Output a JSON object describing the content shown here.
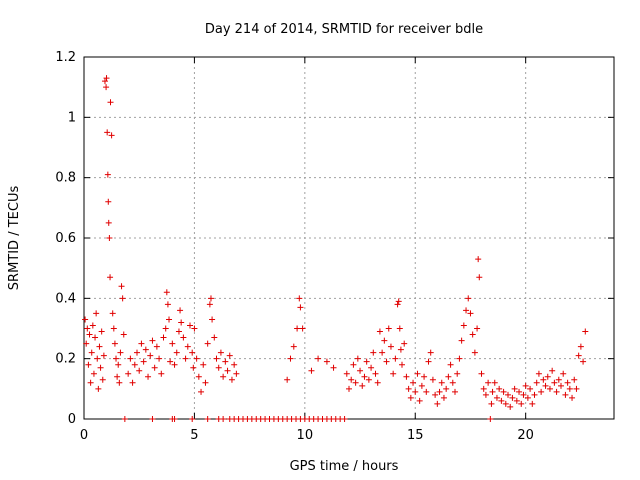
{
  "chart_data": {
    "type": "scatter",
    "title": "Day 214 of 2014, SRMTID for receiver bdle",
    "xlabel": "GPS time / hours",
    "ylabel": "SRMTID / TECUs",
    "xlim": [
      0,
      24
    ],
    "ylim": [
      0,
      1.2
    ],
    "xticks": [
      0,
      5,
      10,
      15,
      20
    ],
    "yticks": [
      0,
      0.2,
      0.4,
      0.6,
      0.8,
      1,
      1.2
    ],
    "xtick_labels": [
      "0",
      "5",
      "10",
      "15",
      "20"
    ],
    "ytick_labels": [
      "0",
      "0.2",
      "0.4",
      "0.6",
      "0.8",
      "1",
      "1.2"
    ],
    "grid": true,
    "marker": "+",
    "color": "#e00000",
    "series": [
      {
        "name": "SRMTID",
        "points": [
          [
            0.05,
            0.33
          ],
          [
            0.1,
            0.25
          ],
          [
            0.15,
            0.3
          ],
          [
            0.2,
            0.18
          ],
          [
            0.25,
            0.28
          ],
          [
            0.3,
            0.12
          ],
          [
            0.35,
            0.22
          ],
          [
            0.4,
            0.31
          ],
          [
            0.45,
            0.15
          ],
          [
            0.5,
            0.27
          ],
          [
            0.55,
            0.35
          ],
          [
            0.6,
            0.2
          ],
          [
            0.65,
            0.1
          ],
          [
            0.7,
            0.24
          ],
          [
            0.75,
            0.17
          ],
          [
            0.8,
            0.29
          ],
          [
            0.85,
            0.13
          ],
          [
            0.9,
            0.21
          ],
          [
            0.95,
            1.12
          ],
          [
            1.0,
            1.1
          ],
          [
            1.02,
            1.13
          ],
          [
            1.05,
            0.95
          ],
          [
            1.08,
            0.81
          ],
          [
            1.1,
            0.72
          ],
          [
            1.12,
            0.65
          ],
          [
            1.15,
            0.6
          ],
          [
            1.18,
            0.47
          ],
          [
            1.2,
            1.05
          ],
          [
            1.25,
            0.94
          ],
          [
            1.3,
            0.35
          ],
          [
            1.35,
            0.3
          ],
          [
            1.4,
            0.25
          ],
          [
            1.45,
            0.2
          ],
          [
            1.5,
            0.14
          ],
          [
            1.55,
            0.18
          ],
          [
            1.6,
            0.12
          ],
          [
            1.65,
            0.22
          ],
          [
            1.7,
            0.44
          ],
          [
            1.75,
            0.4
          ],
          [
            1.8,
            0.28
          ],
          [
            1.85,
            0.0
          ],
          [
            2.0,
            0.15
          ],
          [
            2.1,
            0.2
          ],
          [
            2.2,
            0.12
          ],
          [
            2.3,
            0.18
          ],
          [
            2.4,
            0.22
          ],
          [
            2.5,
            0.16
          ],
          [
            2.6,
            0.25
          ],
          [
            2.7,
            0.19
          ],
          [
            2.8,
            0.23
          ],
          [
            2.9,
            0.14
          ],
          [
            3.0,
            0.21
          ],
          [
            3.1,
            0.26
          ],
          [
            3.2,
            0.17
          ],
          [
            3.3,
            0.24
          ],
          [
            3.4,
            0.2
          ],
          [
            3.5,
            0.15
          ],
          [
            3.6,
            0.27
          ],
          [
            3.7,
            0.3
          ],
          [
            3.75,
            0.42
          ],
          [
            3.8,
            0.38
          ],
          [
            3.85,
            0.33
          ],
          [
            3.9,
            0.19
          ],
          [
            4.0,
            0.25
          ],
          [
            4.1,
            0.18
          ],
          [
            4.2,
            0.22
          ],
          [
            4.3,
            0.29
          ],
          [
            4.35,
            0.36
          ],
          [
            4.4,
            0.32
          ],
          [
            4.5,
            0.27
          ],
          [
            4.6,
            0.2
          ],
          [
            4.7,
            0.24
          ],
          [
            4.8,
            0.31
          ],
          [
            4.9,
            0.22
          ],
          [
            4.95,
            0.17
          ],
          [
            5.0,
            0.3
          ],
          [
            5.1,
            0.2
          ],
          [
            5.2,
            0.14
          ],
          [
            5.3,
            0.09
          ],
          [
            5.4,
            0.18
          ],
          [
            5.5,
            0.12
          ],
          [
            5.6,
            0.25
          ],
          [
            5.7,
            0.38
          ],
          [
            5.75,
            0.4
          ],
          [
            5.8,
            0.33
          ],
          [
            5.9,
            0.27
          ],
          [
            6.0,
            0.2
          ],
          [
            6.1,
            0.17
          ],
          [
            6.2,
            0.22
          ],
          [
            6.3,
            0.14
          ],
          [
            6.4,
            0.19
          ],
          [
            6.5,
            0.16
          ],
          [
            6.6,
            0.21
          ],
          [
            6.7,
            0.13
          ],
          [
            6.8,
            0.18
          ],
          [
            6.9,
            0.15
          ],
          [
            3.1,
            0.0
          ],
          [
            4.0,
            0.0
          ],
          [
            4.1,
            0.0
          ],
          [
            4.9,
            0.0
          ],
          [
            5.6,
            0.0
          ],
          [
            6.1,
            0.0
          ],
          [
            6.3,
            0.0
          ],
          [
            6.6,
            0.0
          ],
          [
            6.8,
            0.0
          ],
          [
            7.0,
            0.0
          ],
          [
            7.2,
            0.0
          ],
          [
            7.4,
            0.0
          ],
          [
            7.6,
            0.0
          ],
          [
            7.8,
            0.0
          ],
          [
            8.0,
            0.0
          ],
          [
            8.2,
            0.0
          ],
          [
            8.4,
            0.0
          ],
          [
            8.6,
            0.0
          ],
          [
            8.8,
            0.0
          ],
          [
            9.0,
            0.0
          ],
          [
            9.2,
            0.0
          ],
          [
            9.4,
            0.0
          ],
          [
            9.6,
            0.0
          ],
          [
            9.8,
            0.0
          ],
          [
            10.0,
            0.0
          ],
          [
            10.2,
            0.0
          ],
          [
            10.4,
            0.0
          ],
          [
            10.6,
            0.0
          ],
          [
            10.8,
            0.0
          ],
          [
            11.0,
            0.0
          ],
          [
            11.2,
            0.0
          ],
          [
            11.4,
            0.0
          ],
          [
            11.6,
            0.0
          ],
          [
            11.8,
            0.0
          ],
          [
            9.2,
            0.13
          ],
          [
            9.35,
            0.2
          ],
          [
            9.5,
            0.24
          ],
          [
            9.65,
            0.3
          ],
          [
            9.75,
            0.4
          ],
          [
            9.8,
            0.37
          ],
          [
            9.9,
            0.3
          ],
          [
            10.3,
            0.16
          ],
          [
            10.6,
            0.2
          ],
          [
            11.0,
            0.19
          ],
          [
            11.3,
            0.17
          ],
          [
            11.9,
            0.15
          ],
          [
            12.0,
            0.1
          ],
          [
            12.1,
            0.13
          ],
          [
            12.2,
            0.18
          ],
          [
            12.3,
            0.12
          ],
          [
            12.4,
            0.2
          ],
          [
            12.5,
            0.16
          ],
          [
            12.6,
            0.11
          ],
          [
            12.7,
            0.14
          ],
          [
            12.8,
            0.19
          ],
          [
            12.9,
            0.13
          ],
          [
            13.0,
            0.17
          ],
          [
            13.1,
            0.22
          ],
          [
            13.2,
            0.15
          ],
          [
            13.3,
            0.12
          ],
          [
            13.4,
            0.29
          ],
          [
            13.5,
            0.22
          ],
          [
            13.6,
            0.26
          ],
          [
            13.7,
            0.19
          ],
          [
            13.8,
            0.3
          ],
          [
            13.9,
            0.24
          ],
          [
            14.0,
            0.15
          ],
          [
            14.1,
            0.2
          ],
          [
            14.2,
            0.38
          ],
          [
            14.25,
            0.39
          ],
          [
            14.3,
            0.3
          ],
          [
            14.35,
            0.23
          ],
          [
            14.4,
            0.18
          ],
          [
            14.5,
            0.25
          ],
          [
            14.6,
            0.14
          ],
          [
            14.7,
            0.1
          ],
          [
            14.8,
            0.07
          ],
          [
            14.9,
            0.12
          ],
          [
            15.0,
            0.09
          ],
          [
            15.1,
            0.15
          ],
          [
            15.2,
            0.06
          ],
          [
            15.3,
            0.11
          ],
          [
            15.4,
            0.14
          ],
          [
            15.5,
            0.09
          ],
          [
            15.6,
            0.19
          ],
          [
            15.7,
            0.22
          ],
          [
            15.8,
            0.13
          ],
          [
            15.9,
            0.08
          ],
          [
            16.0,
            0.05
          ],
          [
            16.1,
            0.09
          ],
          [
            16.2,
            0.12
          ],
          [
            16.3,
            0.07
          ],
          [
            16.4,
            0.1
          ],
          [
            16.5,
            0.14
          ],
          [
            16.6,
            0.18
          ],
          [
            16.7,
            0.12
          ],
          [
            16.8,
            0.09
          ],
          [
            16.9,
            0.15
          ],
          [
            17.0,
            0.2
          ],
          [
            17.1,
            0.26
          ],
          [
            17.2,
            0.31
          ],
          [
            17.3,
            0.36
          ],
          [
            17.4,
            0.4
          ],
          [
            17.5,
            0.35
          ],
          [
            17.6,
            0.28
          ],
          [
            17.7,
            0.22
          ],
          [
            17.8,
            0.3
          ],
          [
            17.85,
            0.53
          ],
          [
            17.9,
            0.47
          ],
          [
            18.0,
            0.15
          ],
          [
            18.1,
            0.1
          ],
          [
            18.2,
            0.08
          ],
          [
            18.3,
            0.12
          ],
          [
            18.4,
            0.0
          ],
          [
            18.45,
            0.05
          ],
          [
            18.5,
            0.09
          ],
          [
            18.6,
            0.12
          ],
          [
            18.7,
            0.07
          ],
          [
            18.8,
            0.1
          ],
          [
            18.9,
            0.06
          ],
          [
            19.0,
            0.09
          ],
          [
            19.1,
            0.05
          ],
          [
            19.2,
            0.08
          ],
          [
            19.3,
            0.04
          ],
          [
            19.4,
            0.07
          ],
          [
            19.5,
            0.1
          ],
          [
            19.6,
            0.06
          ],
          [
            19.7,
            0.09
          ],
          [
            19.8,
            0.05
          ],
          [
            19.9,
            0.08
          ],
          [
            20.0,
            0.11
          ],
          [
            20.1,
            0.07
          ],
          [
            20.2,
            0.1
          ],
          [
            20.3,
            0.05
          ],
          [
            20.4,
            0.08
          ],
          [
            20.5,
            0.12
          ],
          [
            20.6,
            0.15
          ],
          [
            20.7,
            0.09
          ],
          [
            20.8,
            0.13
          ],
          [
            20.9,
            0.11
          ],
          [
            21.0,
            0.14
          ],
          [
            21.1,
            0.1
          ],
          [
            21.2,
            0.16
          ],
          [
            21.3,
            0.12
          ],
          [
            21.4,
            0.09
          ],
          [
            21.5,
            0.13
          ],
          [
            21.6,
            0.11
          ],
          [
            21.7,
            0.15
          ],
          [
            21.8,
            0.08
          ],
          [
            21.9,
            0.12
          ],
          [
            22.0,
            0.1
          ],
          [
            22.1,
            0.07
          ],
          [
            22.2,
            0.13
          ],
          [
            22.3,
            0.1
          ],
          [
            22.4,
            0.21
          ],
          [
            22.5,
            0.24
          ],
          [
            22.6,
            0.19
          ],
          [
            22.7,
            0.29
          ]
        ]
      }
    ]
  }
}
